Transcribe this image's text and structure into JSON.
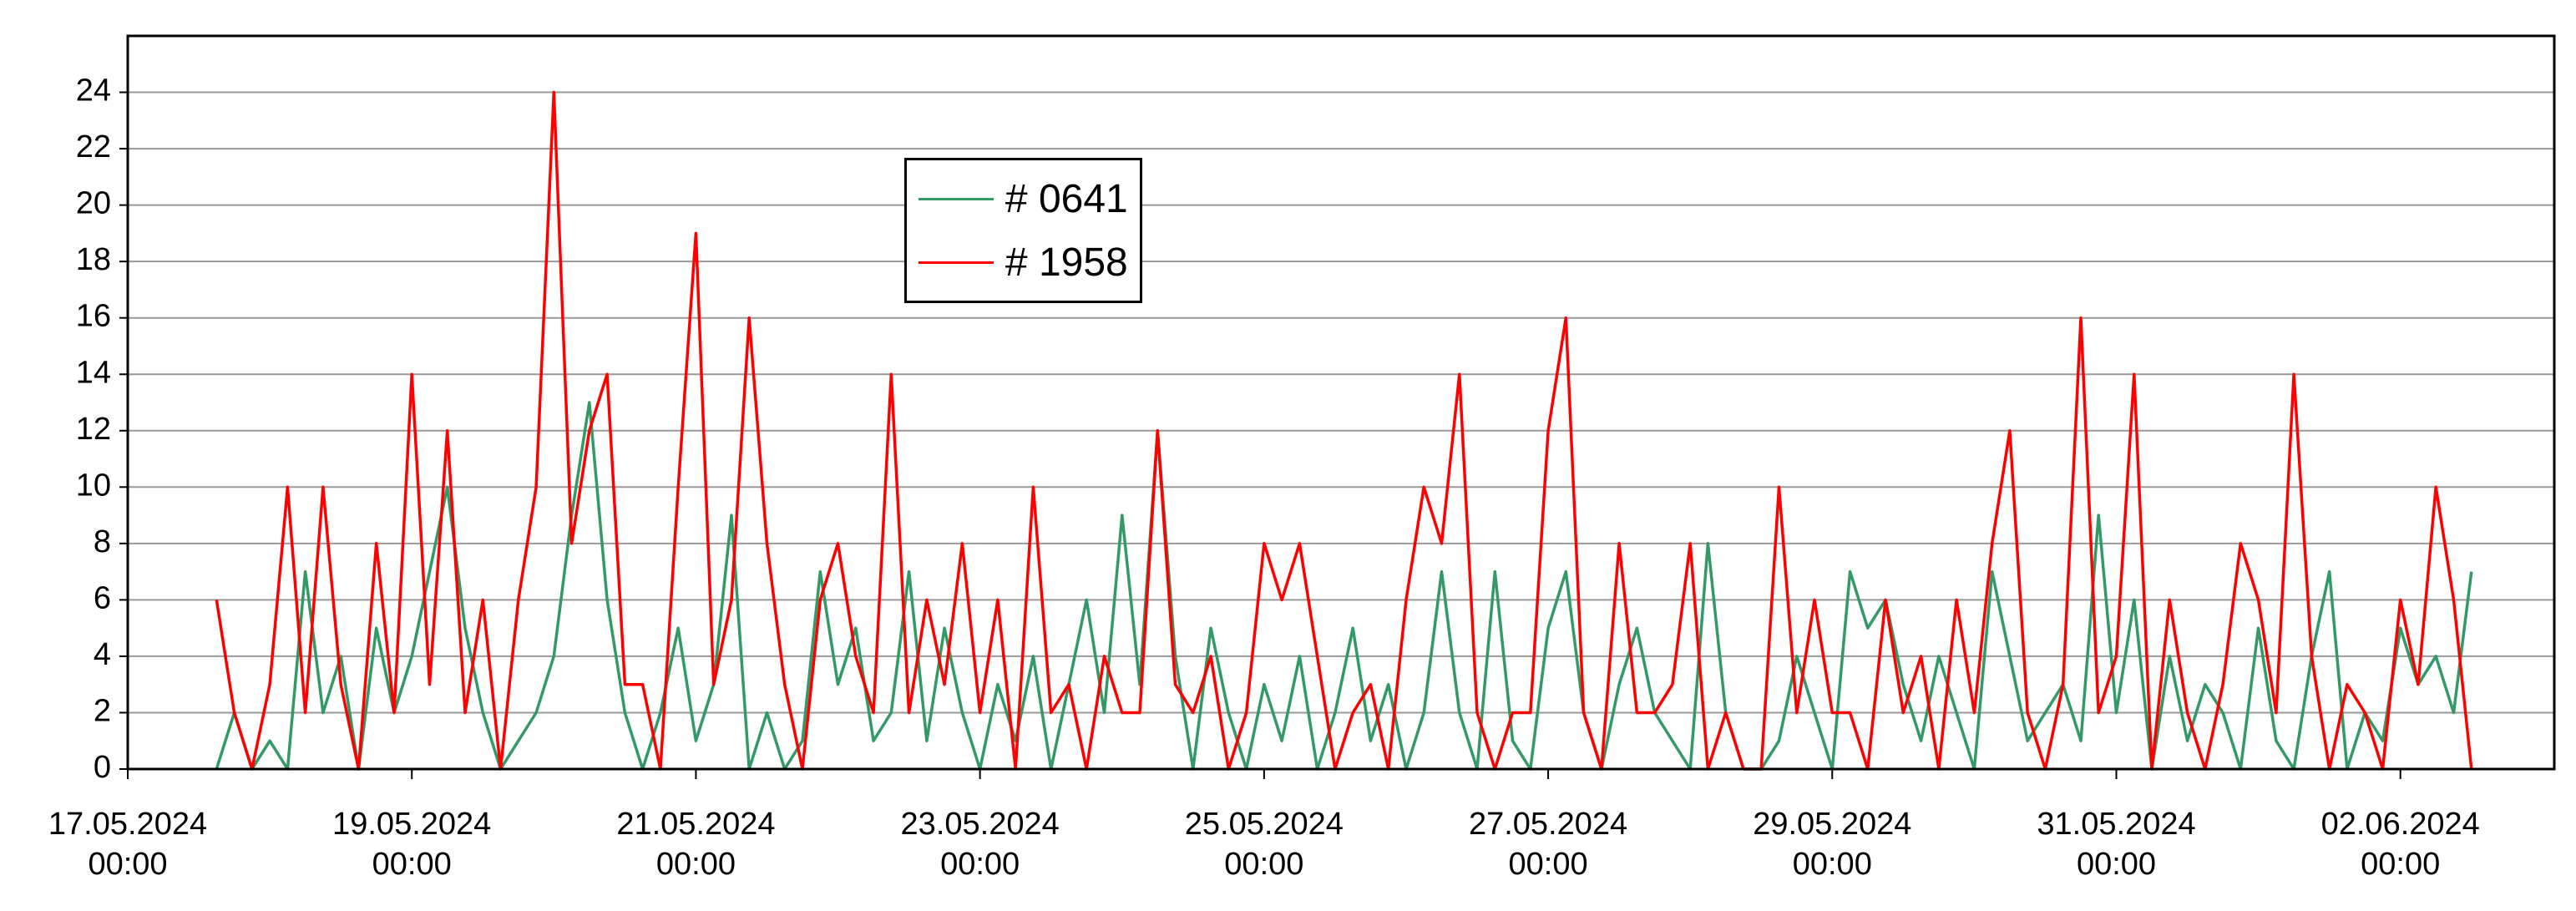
{
  "chart_data": {
    "type": "line",
    "x": [
      "2024-05-17T15:00",
      "2024-05-17T18:00",
      "2024-05-17T21:00",
      "2024-05-18T00:00",
      "2024-05-18T03:00",
      "2024-05-18T06:00",
      "2024-05-18T09:00",
      "2024-05-18T12:00",
      "2024-05-18T15:00",
      "2024-05-18T18:00",
      "2024-05-18T21:00",
      "2024-05-19T00:00",
      "2024-05-19T03:00",
      "2024-05-19T06:00",
      "2024-05-19T09:00",
      "2024-05-19T12:00",
      "2024-05-19T15:00",
      "2024-05-19T18:00",
      "2024-05-19T21:00",
      "2024-05-20T00:00",
      "2024-05-20T03:00",
      "2024-05-20T06:00",
      "2024-05-20T09:00",
      "2024-05-20T12:00",
      "2024-05-20T15:00",
      "2024-05-20T18:00",
      "2024-05-20T21:00",
      "2024-05-21T00:00",
      "2024-05-21T03:00",
      "2024-05-21T06:00",
      "2024-05-21T09:00",
      "2024-05-21T12:00",
      "2024-05-21T15:00",
      "2024-05-21T18:00",
      "2024-05-21T21:00",
      "2024-05-22T00:00",
      "2024-05-22T03:00",
      "2024-05-22T06:00",
      "2024-05-22T09:00",
      "2024-05-22T12:00",
      "2024-05-22T15:00",
      "2024-05-22T18:00",
      "2024-05-22T21:00",
      "2024-05-23T00:00",
      "2024-05-23T03:00",
      "2024-05-23T06:00",
      "2024-05-23T09:00",
      "2024-05-23T12:00",
      "2024-05-23T15:00",
      "2024-05-23T18:00",
      "2024-05-23T21:00",
      "2024-05-24T00:00",
      "2024-05-24T03:00",
      "2024-05-24T06:00",
      "2024-05-24T09:00",
      "2024-05-24T12:00",
      "2024-05-24T15:00",
      "2024-05-24T18:00",
      "2024-05-24T21:00",
      "2024-05-25T00:00",
      "2024-05-25T03:00",
      "2024-05-25T06:00",
      "2024-05-25T09:00",
      "2024-05-25T12:00",
      "2024-05-25T15:00",
      "2024-05-25T18:00",
      "2024-05-25T21:00",
      "2024-05-26T00:00",
      "2024-05-26T03:00",
      "2024-05-26T06:00",
      "2024-05-26T09:00",
      "2024-05-26T12:00",
      "2024-05-26T15:00",
      "2024-05-26T18:00",
      "2024-05-26T21:00",
      "2024-05-27T00:00",
      "2024-05-27T03:00",
      "2024-05-27T06:00",
      "2024-05-27T09:00",
      "2024-05-27T12:00",
      "2024-05-27T15:00",
      "2024-05-27T18:00",
      "2024-05-27T21:00",
      "2024-05-28T00:00",
      "2024-05-28T03:00",
      "2024-05-28T06:00",
      "2024-05-28T09:00",
      "2024-05-28T12:00",
      "2024-05-28T15:00",
      "2024-05-28T18:00",
      "2024-05-28T21:00",
      "2024-05-29T00:00",
      "2024-05-29T03:00",
      "2024-05-29T06:00",
      "2024-05-29T09:00",
      "2024-05-29T12:00",
      "2024-05-29T15:00",
      "2024-05-29T18:00",
      "2024-05-29T21:00",
      "2024-05-30T00:00",
      "2024-05-30T03:00",
      "2024-05-30T06:00",
      "2024-05-30T09:00",
      "2024-05-30T12:00",
      "2024-05-30T15:00",
      "2024-05-30T18:00",
      "2024-05-30T21:00",
      "2024-05-31T00:00",
      "2024-05-31T03:00",
      "2024-05-31T06:00",
      "2024-05-31T09:00",
      "2024-05-31T12:00",
      "2024-05-31T15:00",
      "2024-05-31T18:00",
      "2024-05-31T21:00",
      "2024-06-01T00:00",
      "2024-06-01T03:00",
      "2024-06-01T06:00",
      "2024-06-01T09:00",
      "2024-06-01T12:00",
      "2024-06-01T15:00",
      "2024-06-01T18:00",
      "2024-06-01T21:00",
      "2024-06-02T00:00",
      "2024-06-02T03:00",
      "2024-06-02T06:00",
      "2024-06-02T09:00",
      "2024-06-02T12:00"
    ],
    "series": [
      {
        "name": "# 0641",
        "color": "#339966",
        "values": [
          0,
          2,
          0,
          1,
          0,
          7,
          2,
          4,
          0,
          5,
          2,
          4,
          7,
          10,
          5,
          2,
          0,
          1,
          2,
          4,
          9,
          13,
          6,
          2,
          0,
          2,
          5,
          1,
          3,
          9,
          0,
          2,
          0,
          1,
          7,
          3,
          5,
          1,
          2,
          7,
          1,
          5,
          2,
          0,
          3,
          1,
          4,
          0,
          3,
          6,
          2,
          9,
          3,
          12,
          4,
          0,
          5,
          2,
          0,
          3,
          1,
          4,
          0,
          2,
          5,
          1,
          3,
          0,
          2,
          7,
          2,
          0,
          7,
          1,
          0,
          5,
          7,
          2,
          0,
          3,
          5,
          2,
          1,
          0,
          8,
          2,
          0,
          0,
          1,
          4,
          2,
          0,
          7,
          5,
          6,
          3,
          1,
          4,
          2,
          0,
          7,
          4,
          1,
          2,
          3,
          1,
          9,
          2,
          6,
          0,
          4,
          1,
          3,
          2,
          0,
          5,
          1,
          0,
          4,
          7,
          0,
          2,
          1,
          5,
          3,
          4,
          2,
          7
        ]
      },
      {
        "name": "# 1958",
        "color": "#ff0000",
        "values": [
          6,
          2,
          0,
          3,
          10,
          2,
          10,
          3,
          0,
          8,
          2,
          14,
          3,
          12,
          2,
          6,
          0,
          6,
          10,
          24,
          8,
          12,
          14,
          3,
          3,
          0,
          10,
          19,
          3,
          6,
          16,
          8,
          3,
          0,
          6,
          8,
          4,
          2,
          14,
          2,
          6,
          3,
          8,
          2,
          6,
          0,
          10,
          2,
          3,
          0,
          4,
          2,
          2,
          12,
          3,
          2,
          4,
          0,
          2,
          8,
          6,
          8,
          4,
          0,
          2,
          3,
          0,
          6,
          10,
          8,
          14,
          2,
          0,
          2,
          2,
          12,
          16,
          2,
          0,
          8,
          2,
          2,
          3,
          8,
          0,
          2,
          0,
          0,
          10,
          2,
          6,
          2,
          2,
          0,
          6,
          2,
          4,
          0,
          6,
          2,
          8,
          12,
          2,
          0,
          3,
          16,
          2,
          4,
          14,
          0,
          6,
          2,
          0,
          3,
          8,
          6,
          2,
          14,
          4,
          0,
          3,
          2,
          0,
          6,
          3,
          10,
          6,
          0
        ]
      }
    ],
    "xlim": [
      "2024-05-17T00:00",
      "2024-06-03T02:00"
    ],
    "xticks": [
      {
        "value": "2024-05-17T00:00",
        "label": "17.05.2024 00:00"
      },
      {
        "value": "2024-05-19T00:00",
        "label": "19.05.2024 00:00"
      },
      {
        "value": "2024-05-21T00:00",
        "label": "21.05.2024 00:00"
      },
      {
        "value": "2024-05-23T00:00",
        "label": "23.05.2024 00:00"
      },
      {
        "value": "2024-05-25T00:00",
        "label": "25.05.2024 00:00"
      },
      {
        "value": "2024-05-27T00:00",
        "label": "27.05.2024 00:00"
      },
      {
        "value": "2024-05-29T00:00",
        "label": "29.05.2024 00:00"
      },
      {
        "value": "2024-05-31T00:00",
        "label": "31.05.2024 00:00"
      },
      {
        "value": "2024-06-02T00:00",
        "label": "02.06.2024 00:00"
      }
    ],
    "ylim": [
      0,
      26
    ],
    "yticks": [
      0,
      2,
      4,
      6,
      8,
      10,
      12,
      14,
      16,
      18,
      20,
      22,
      24
    ],
    "grid": true,
    "legend": "upper center"
  }
}
